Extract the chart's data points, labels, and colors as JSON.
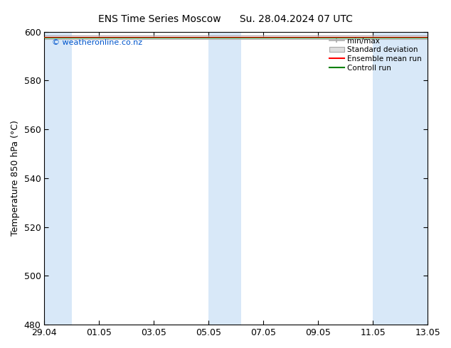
{
  "title_left": "ENS Time Series Moscow",
  "title_right": "Su. 28.04.2024 07 UTC",
  "ylabel": "Temperature 850 hPa (°C)",
  "ylim": [
    480,
    600
  ],
  "yticks": [
    480,
    500,
    520,
    540,
    560,
    580,
    600
  ],
  "background_color": "#ffffff",
  "plot_bg_color": "#ffffff",
  "band_color": "#d8e8f8",
  "watermark": "© weatheronline.co.nz",
  "legend_entries": [
    "min/max",
    "Standard deviation",
    "Ensemble mean run",
    "Controll run"
  ],
  "legend_colors": [
    "#aaaaaa",
    "#cccccc",
    "#ff0000",
    "#008000"
  ],
  "x_tick_labels": [
    "29.04",
    "01.05",
    "03.05",
    "05.05",
    "07.05",
    "09.05",
    "11.05",
    "13.05"
  ],
  "x_tick_positions": [
    0,
    2,
    4,
    6,
    8,
    10,
    12,
    14
  ],
  "shaded_bands": [
    {
      "start": -0.15,
      "end": 1.0
    },
    {
      "start": 6.0,
      "end": 7.2
    },
    {
      "start": 12.0,
      "end": 14.15
    }
  ],
  "data_y": 597.5,
  "figsize": [
    6.34,
    4.9
  ],
  "dpi": 100
}
